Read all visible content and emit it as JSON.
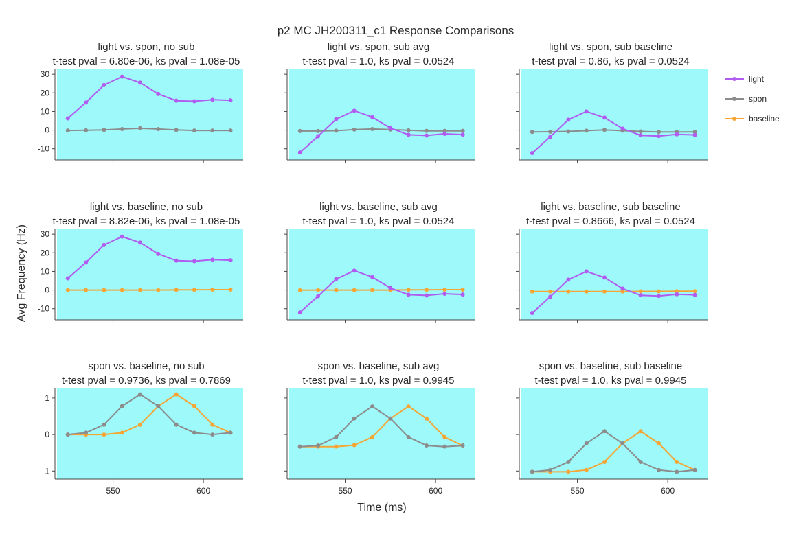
{
  "figure": {
    "title": "p2 MC JH200311_c1 Response Comparisons",
    "xlabel": "Time (ms)",
    "ylabel": "Avg Frequency (Hz)"
  },
  "legend": [
    {
      "name": "light",
      "color": "#b15cf0"
    },
    {
      "name": "spon",
      "color": "#8c8c8c"
    },
    {
      "name": "baseline",
      "color": "#f5a534"
    }
  ],
  "colors": {
    "plot_bg": "#9ef9fa"
  },
  "chart_data": [
    {
      "type": "line",
      "title": "light vs. spon, no sub",
      "subtitle": "t-test pval = 6.80e-06, ks pval = 1.08e-05",
      "yticks": [
        -10,
        0,
        10,
        20,
        30
      ],
      "ylim": [
        -16,
        33
      ],
      "xticks": [
        550,
        600
      ],
      "xlim": [
        519,
        622
      ],
      "x": [
        525,
        535,
        545,
        555,
        565,
        575,
        585,
        595,
        605,
        615
      ],
      "series": [
        {
          "name": "light",
          "color": "#b15cf0",
          "values": [
            6.3,
            14.8,
            24.2,
            28.7,
            25.5,
            19.4,
            15.8,
            15.5,
            16.3,
            16.0
          ]
        },
        {
          "name": "spon",
          "color": "#8c8c8c",
          "values": [
            -0.2,
            -0.1,
            0.1,
            0.6,
            1.0,
            0.6,
            0.1,
            -0.2,
            -0.2,
            -0.2
          ]
        }
      ]
    },
    {
      "type": "line",
      "title": "light vs. spon, sub avg",
      "subtitle": "t-test pval = 1.0, ks pval = 0.0524",
      "yticks": [],
      "ylim": [
        -16,
        33
      ],
      "xticks": [
        550,
        600
      ],
      "xlim": [
        519,
        622
      ],
      "x": [
        525,
        535,
        545,
        555,
        565,
        575,
        585,
        595,
        605,
        615
      ],
      "series": [
        {
          "name": "light",
          "color": "#b15cf0",
          "values": [
            -12.0,
            -3.3,
            5.9,
            10.4,
            7.0,
            1.1,
            -2.5,
            -2.9,
            -2.0,
            -2.4
          ]
        },
        {
          "name": "spon",
          "color": "#8c8c8c",
          "values": [
            -0.5,
            -0.5,
            -0.3,
            0.3,
            0.6,
            0.3,
            -0.1,
            -0.4,
            -0.4,
            -0.4
          ]
        }
      ]
    },
    {
      "type": "line",
      "title": "light vs. spon, sub baseline",
      "subtitle": "t-test pval = 0.86, ks pval = 0.0524",
      "yticks": [],
      "ylim": [
        -16,
        33
      ],
      "xticks": [
        550,
        600
      ],
      "xlim": [
        519,
        622
      ],
      "x": [
        525,
        535,
        545,
        555,
        565,
        575,
        585,
        595,
        605,
        615
      ],
      "series": [
        {
          "name": "light",
          "color": "#b15cf0",
          "values": [
            -12.3,
            -3.6,
            5.6,
            10.0,
            6.7,
            0.8,
            -2.8,
            -3.2,
            -2.3,
            -2.6
          ]
        },
        {
          "name": "spon",
          "color": "#8c8c8c",
          "values": [
            -1.0,
            -0.9,
            -0.7,
            -0.3,
            0.1,
            -0.3,
            -0.7,
            -1.0,
            -1.0,
            -1.0
          ]
        }
      ]
    },
    {
      "type": "line",
      "title": "light vs. baseline, no sub",
      "subtitle": "t-test pval = 8.82e-06, ks pval = 1.08e-05",
      "yticks": [
        -10,
        0,
        10,
        20,
        30
      ],
      "ylim": [
        -16,
        33
      ],
      "xticks": [
        550,
        600
      ],
      "xlim": [
        519,
        622
      ],
      "x": [
        525,
        535,
        545,
        555,
        565,
        575,
        585,
        595,
        605,
        615
      ],
      "series": [
        {
          "name": "light",
          "color": "#b15cf0",
          "values": [
            6.3,
            14.8,
            24.2,
            28.7,
            25.5,
            19.4,
            15.8,
            15.5,
            16.3,
            16.0
          ]
        },
        {
          "name": "baseline",
          "color": "#f5a534",
          "values": [
            0.0,
            0.0,
            0.0,
            0.0,
            0.0,
            0.0,
            0.1,
            0.1,
            0.2,
            0.2
          ]
        }
      ]
    },
    {
      "type": "line",
      "title": "light vs. baseline, sub avg",
      "subtitle": "t-test pval = 1.0, ks pval = 0.0524",
      "yticks": [],
      "ylim": [
        -16,
        33
      ],
      "xticks": [
        550,
        600
      ],
      "xlim": [
        519,
        622
      ],
      "x": [
        525,
        535,
        545,
        555,
        565,
        575,
        585,
        595,
        605,
        615
      ],
      "series": [
        {
          "name": "light",
          "color": "#b15cf0",
          "values": [
            -12.0,
            -3.3,
            5.9,
            10.4,
            7.0,
            1.1,
            -2.5,
            -2.9,
            -2.0,
            -2.4
          ]
        },
        {
          "name": "baseline",
          "color": "#f5a534",
          "values": [
            -0.1,
            0.0,
            0.0,
            0.0,
            0.0,
            0.0,
            0.1,
            0.1,
            0.2,
            0.2
          ]
        }
      ]
    },
    {
      "type": "line",
      "title": "light vs. baseline, sub baseline",
      "subtitle": "t-test pval = 0.8666, ks pval = 0.0524",
      "yticks": [],
      "ylim": [
        -16,
        33
      ],
      "xticks": [
        550,
        600
      ],
      "xlim": [
        519,
        622
      ],
      "x": [
        525,
        535,
        545,
        555,
        565,
        575,
        585,
        595,
        605,
        615
      ],
      "series": [
        {
          "name": "light",
          "color": "#b15cf0",
          "values": [
            -12.3,
            -3.6,
            5.6,
            10.0,
            6.7,
            0.8,
            -2.8,
            -3.2,
            -2.3,
            -2.6
          ]
        },
        {
          "name": "baseline",
          "color": "#f5a534",
          "values": [
            -0.8,
            -0.8,
            -0.8,
            -0.8,
            -0.8,
            -0.8,
            -0.7,
            -0.7,
            -0.6,
            -0.6
          ]
        }
      ]
    },
    {
      "type": "line",
      "title": "spon vs. baseline, no sub",
      "subtitle": "t-test pval = 0.9736, ks pval = 0.7869",
      "yticks": [
        -1,
        0,
        1
      ],
      "ylim": [
        -1.22,
        1.28
      ],
      "xticks": [
        550,
        600
      ],
      "xlim": [
        519,
        622
      ],
      "x": [
        525,
        535,
        545,
        555,
        565,
        575,
        585,
        595,
        605,
        615
      ],
      "series": [
        {
          "name": "spon",
          "color": "#8c8c8c",
          "values": [
            0.0,
            0.05,
            0.27,
            0.78,
            1.1,
            0.78,
            0.27,
            0.05,
            0.0,
            0.05
          ]
        },
        {
          "name": "baseline",
          "color": "#f5a534",
          "values": [
            0.0,
            0.0,
            0.0,
            0.05,
            0.27,
            0.78,
            1.1,
            0.78,
            0.27,
            0.05
          ]
        }
      ]
    },
    {
      "type": "line",
      "title": "spon vs. baseline, sub avg",
      "subtitle": "t-test pval = 1.0, ks pval = 0.9945",
      "yticks": [],
      "ylim": [
        -1.22,
        1.28
      ],
      "xticks": [
        550,
        600
      ],
      "xlim": [
        519,
        622
      ],
      "x": [
        525,
        535,
        545,
        555,
        565,
        575,
        585,
        595,
        605,
        615
      ],
      "series": [
        {
          "name": "spon",
          "color": "#8c8c8c",
          "values": [
            -0.33,
            -0.3,
            -0.07,
            0.44,
            0.77,
            0.44,
            -0.07,
            -0.3,
            -0.33,
            -0.3
          ]
        },
        {
          "name": "baseline",
          "color": "#f5a534",
          "values": [
            -0.33,
            -0.33,
            -0.33,
            -0.29,
            -0.07,
            0.44,
            0.77,
            0.44,
            -0.07,
            -0.3
          ]
        }
      ]
    },
    {
      "type": "line",
      "title": "spon vs. baseline, sub baseline",
      "subtitle": "t-test pval = 1.0, ks pval = 0.9945",
      "yticks": [],
      "ylim": [
        -1.22,
        1.28
      ],
      "xticks": [
        550,
        600
      ],
      "xlim": [
        519,
        622
      ],
      "x": [
        525,
        535,
        545,
        555,
        565,
        575,
        585,
        595,
        605,
        615
      ],
      "series": [
        {
          "name": "spon",
          "color": "#8c8c8c",
          "values": [
            -1.02,
            -0.97,
            -0.75,
            -0.24,
            0.09,
            -0.24,
            -0.75,
            -0.97,
            -1.02,
            -0.97
          ]
        },
        {
          "name": "baseline",
          "color": "#f5a534",
          "values": [
            -1.02,
            -1.02,
            -1.02,
            -0.97,
            -0.75,
            -0.24,
            0.09,
            -0.24,
            -0.75,
            -0.97
          ]
        }
      ]
    }
  ]
}
